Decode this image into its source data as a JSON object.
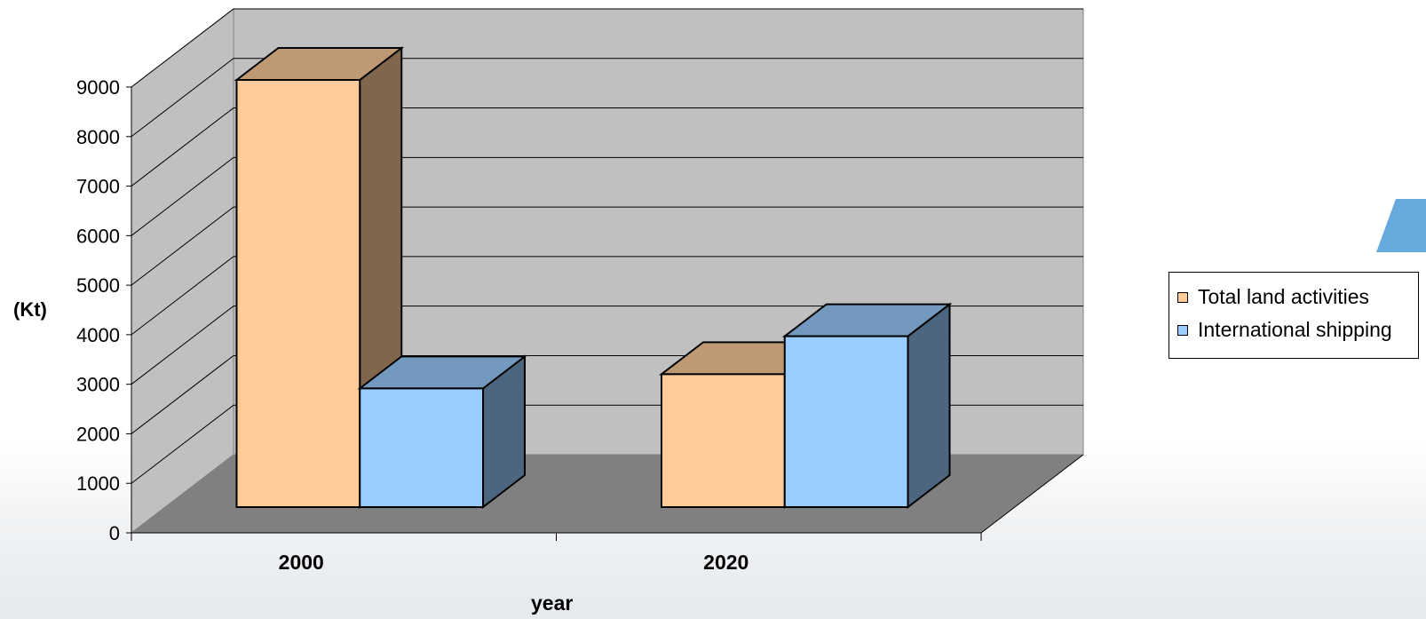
{
  "chart_data": {
    "type": "bar",
    "style": "3d-clustered",
    "categories": [
      "2000",
      "2020"
    ],
    "series": [
      {
        "name": "Total land activities",
        "values": [
          9000,
          2800
        ],
        "color": "#ffcc99"
      },
      {
        "name": "International shipping",
        "values": [
          2500,
          3600
        ],
        "color": "#99ccff"
      }
    ],
    "xlabel": "year",
    "ylabel": "(Kt)",
    "ylim": [
      0,
      9000
    ],
    "yticks": [
      "0",
      "1000",
      "2000",
      "3000",
      "4000",
      "5000",
      "6000",
      "7000",
      "8000",
      "9000"
    ],
    "grid": true,
    "legend_position": "right",
    "wall_color": "#c0c0c0",
    "floor_color": "#808080"
  }
}
